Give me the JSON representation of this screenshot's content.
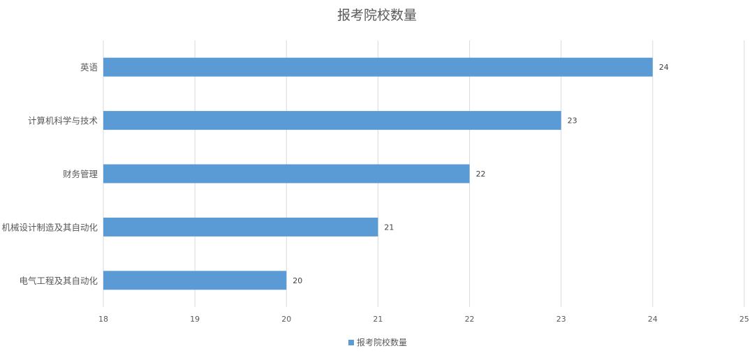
{
  "chart_data": {
    "type": "bar",
    "orientation": "horizontal",
    "title": "报考院校数量",
    "xlabel": "",
    "ylabel": "",
    "categories": [
      "英语",
      "计算机科学与技术",
      "财务管理",
      "机械设计制造及其自动化",
      "电气工程及其自动化"
    ],
    "series": [
      {
        "name": "报考院校数量",
        "values": [
          24,
          23,
          22,
          21,
          20
        ]
      }
    ],
    "xlim": [
      18,
      25
    ],
    "xticks": [
      18,
      19,
      20,
      21,
      22,
      23,
      24,
      25
    ],
    "grid": true,
    "legend": "bottom",
    "data_labels": true,
    "colors": {
      "bar": "#5B9BD5",
      "grid": "#D9D9D9",
      "text": "#595959",
      "title": "#595959"
    }
  }
}
